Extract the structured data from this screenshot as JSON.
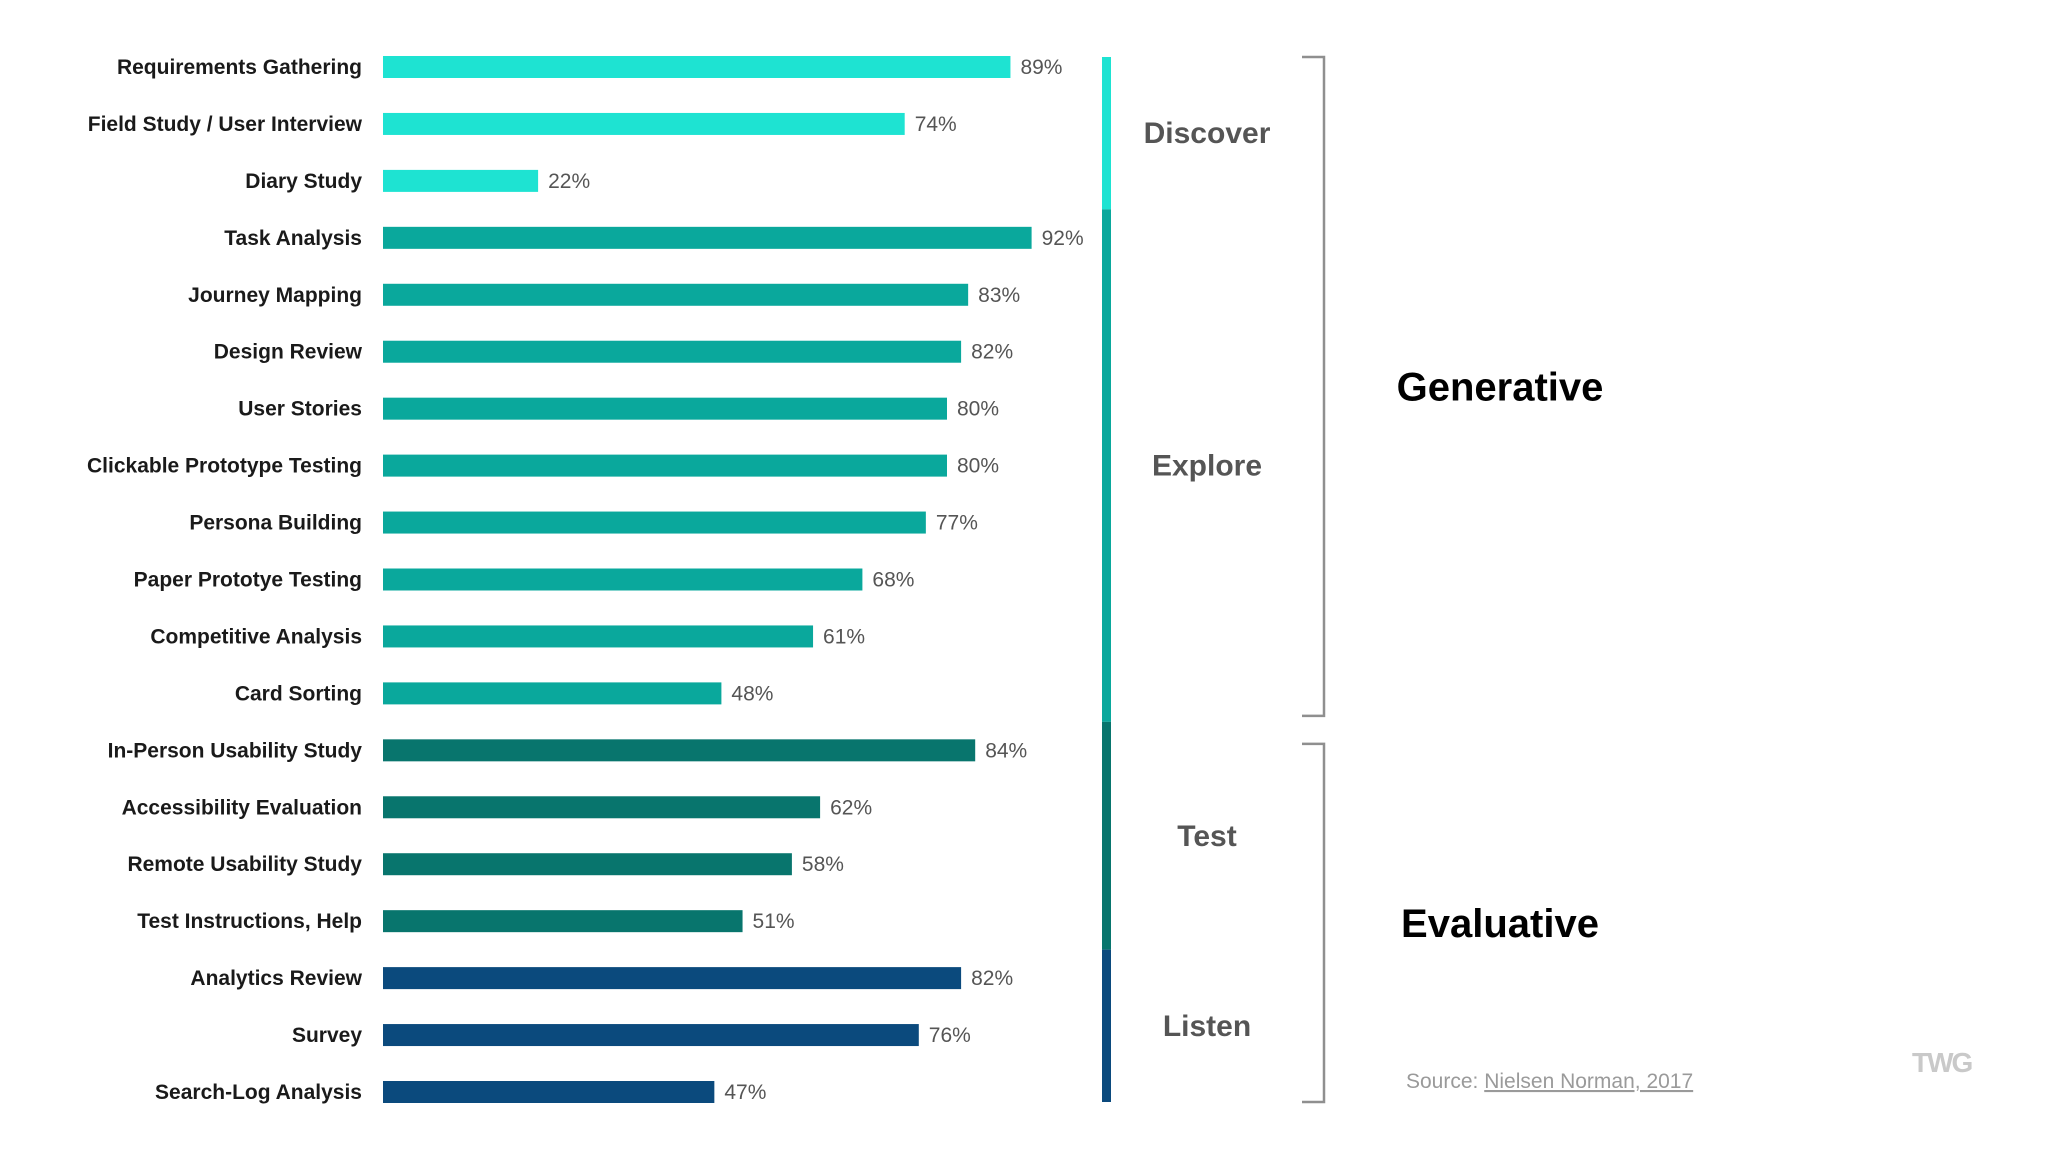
{
  "chart_data": {
    "type": "bar",
    "orientation": "horizontal",
    "unit": "%",
    "xlim": [
      0,
      100
    ],
    "categories": [
      "Requirements Gathering",
      "Field Study / User Interview",
      "Diary Study",
      "Task Analysis",
      "Journey Mapping",
      "Design Review",
      "User Stories",
      "Clickable Prototype Testing",
      "Persona Building",
      "Paper Prototye Testing",
      "Competitive Analysis",
      "Card Sorting",
      "In-Person Usability Study",
      "Accessibility Evaluation",
      "Remote Usability Study",
      "Test Instructions, Help",
      "Analytics Review",
      "Survey",
      "Search-Log Analysis"
    ],
    "values": [
      89,
      74,
      22,
      92,
      83,
      82,
      80,
      80,
      77,
      68,
      61,
      48,
      84,
      62,
      58,
      51,
      82,
      76,
      47
    ],
    "phases": [
      {
        "name": "Discover",
        "start": 0,
        "end": 2,
        "color": "#1ee3d2"
      },
      {
        "name": "Explore",
        "start": 3,
        "end": 11,
        "color": "#0aa89c"
      },
      {
        "name": "Test",
        "start": 12,
        "end": 15,
        "color": "#08756d"
      },
      {
        "name": "Listen",
        "start": 16,
        "end": 18,
        "color": "#0b4a7d"
      }
    ],
    "groups": [
      {
        "name": "Generative",
        "start": 0,
        "end": 11
      },
      {
        "name": "Evaluative",
        "start": 12,
        "end": 18
      }
    ]
  },
  "source": {
    "prefix": "Source: ",
    "link_text": "Nielsen Norman, 2017"
  },
  "logo_text": "TWG"
}
